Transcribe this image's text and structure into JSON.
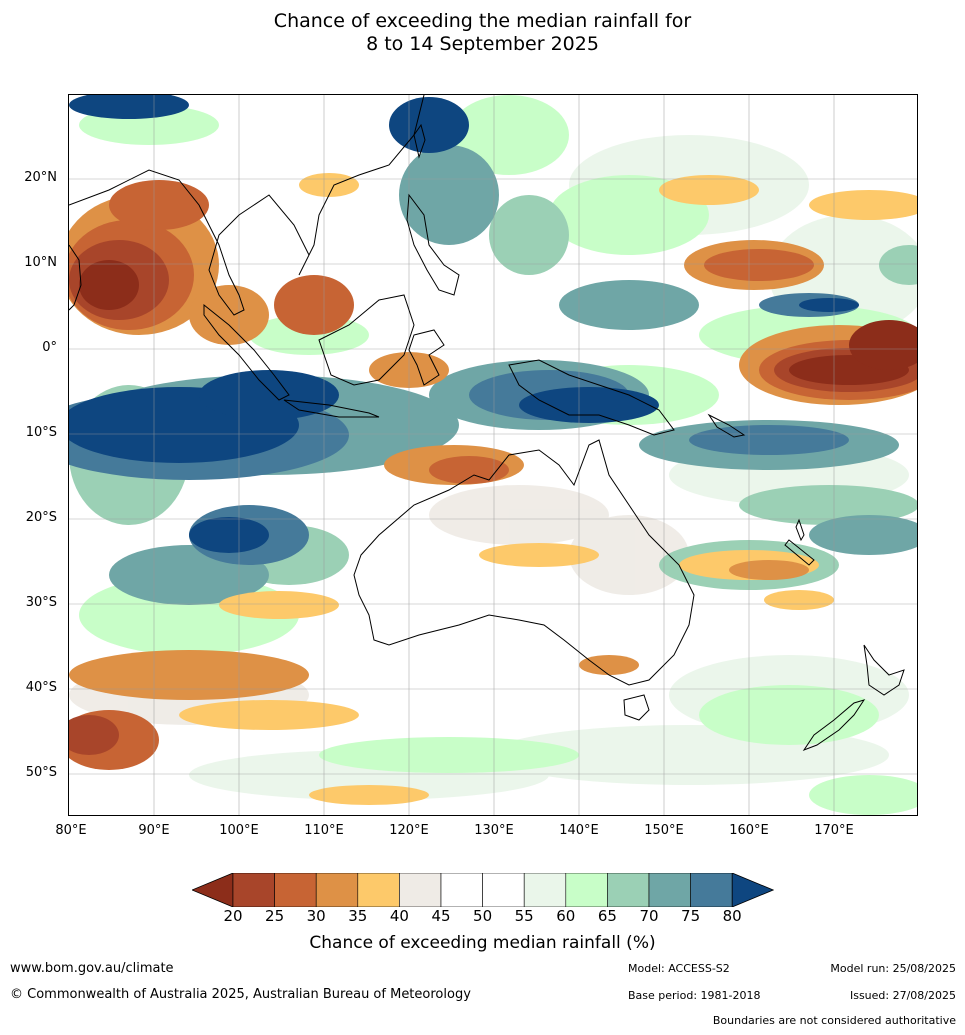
{
  "title": {
    "line1": "Chance of exceeding the median rainfall for",
    "line2": "8 to 14 September 2025"
  },
  "map": {
    "lat_labels": [
      "20°N",
      "10°N",
      "0°",
      "10°S",
      "20°S",
      "30°S",
      "40°S",
      "50°S"
    ],
    "lon_labels": [
      "80°E",
      "90°E",
      "100°E",
      "110°E",
      "120°E",
      "130°E",
      "140°E",
      "150°E",
      "160°E",
      "170°E"
    ],
    "extent": {
      "lon": [
        80,
        180
      ],
      "lat": [
        -55,
        30
      ]
    }
  },
  "legend": {
    "ticks": [
      "20",
      "25",
      "30",
      "35",
      "40",
      "45",
      "50",
      "55",
      "60",
      "65",
      "70",
      "75",
      "80"
    ],
    "colors": [
      "#8c2d1a",
      "#a8452a",
      "#c76434",
      "#de9146",
      "#fdc96a",
      "#efebe6",
      "#ffffff",
      "#ffffff",
      "#eaf6ea",
      "#c8fec8",
      "#9bd0b5",
      "#6fa6a6",
      "#457a9a",
      "#0e4680"
    ],
    "title": "Chance of exceeding median rainfall (%)"
  },
  "footer": {
    "website": "www.bom.gov.au/climate",
    "copyright": "© Commonwealth of Australia 2025, Australian Bureau of Meteorology",
    "model": "Model: ACCESS-S2",
    "base_period": "Base period: 1981-2018",
    "model_run": "Model run: 25/08/2025",
    "issued": "Issued: 27/08/2025",
    "disclaimer": "Boundaries are not considered authoritative"
  }
}
